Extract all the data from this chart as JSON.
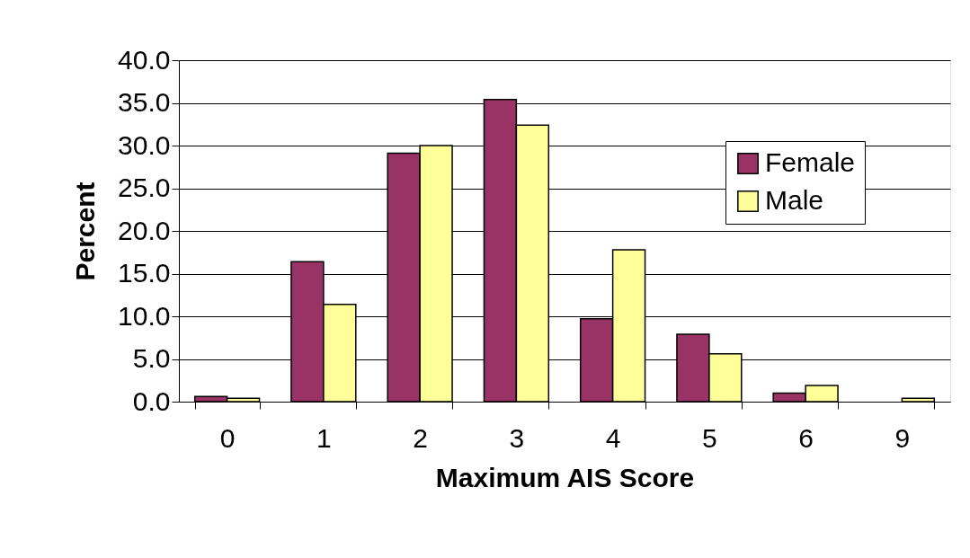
{
  "chart_data": {
    "type": "bar",
    "xlabel": "Maximum AIS Score",
    "ylabel": "Percent",
    "categories": [
      "0",
      "1",
      "2",
      "3",
      "4",
      "5",
      "6",
      "9"
    ],
    "series": [
      {
        "name": "Female",
        "color": "#993366",
        "values": [
          0.6,
          16.4,
          29.1,
          35.4,
          9.7,
          7.9,
          1.0,
          null
        ]
      },
      {
        "name": "Male",
        "color": "#ffff99",
        "values": [
          0.4,
          11.4,
          30.0,
          32.4,
          17.8,
          5.6,
          1.9,
          0.4
        ]
      }
    ],
    "ylim": [
      0,
      40
    ],
    "yticks": [
      {
        "value": 0,
        "label": "0.0"
      },
      {
        "value": 5,
        "label": "5.0"
      },
      {
        "value": 10,
        "label": "10.0"
      },
      {
        "value": 15,
        "label": "15.0"
      },
      {
        "value": 20,
        "label": "20.0"
      },
      {
        "value": 25,
        "label": "25.0"
      },
      {
        "value": 30,
        "label": "30.0"
      },
      {
        "value": 35,
        "label": "35.0"
      },
      {
        "value": 40,
        "label": "40.0"
      }
    ],
    "grid": "y",
    "legend": "top right"
  }
}
